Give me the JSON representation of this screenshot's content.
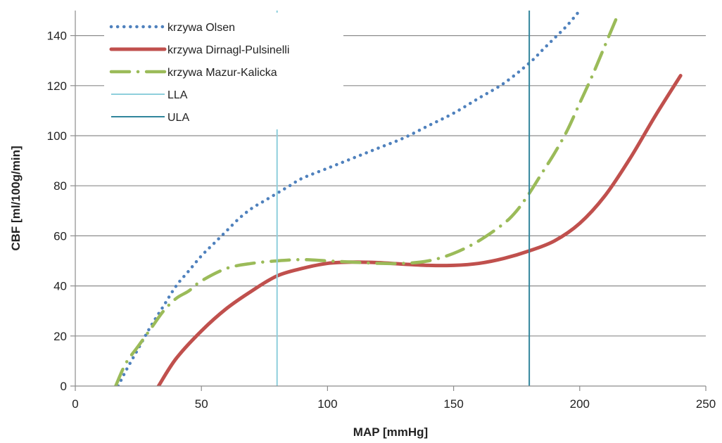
{
  "chart_data": {
    "type": "line",
    "xlabel": "MAP [mmHg]",
    "ylabel": "CBF [ml/100g/min]",
    "xlim": [
      0,
      250
    ],
    "ylim": [
      0,
      150
    ],
    "x_ticks": [
      0,
      50,
      100,
      150,
      200,
      250
    ],
    "y_ticks": [
      0,
      20,
      40,
      60,
      80,
      100,
      120,
      140
    ],
    "grid": "horizontal",
    "legend_position": "top-left",
    "series": [
      {
        "name": "krzywa Olsen",
        "color": "#4F81BD",
        "style": "dotted",
        "x": [
          17,
          20,
          25,
          30,
          35,
          40,
          45,
          50,
          55,
          60,
          65,
          70,
          75,
          80,
          85,
          90,
          100,
          110,
          120,
          130,
          140,
          150,
          160,
          170,
          180,
          185,
          190,
          195,
          200
        ],
        "y": [
          0,
          6,
          15,
          24,
          32,
          40,
          46,
          52,
          57,
          62,
          67,
          71,
          74,
          77,
          80,
          83,
          87,
          91,
          95,
          99,
          104,
          109,
          115,
          121,
          129,
          134,
          139,
          144,
          150
        ]
      },
      {
        "name": "krzywa Dirnagl-Pulsinelli",
        "color": "#C0504D",
        "style": "solid",
        "x": [
          33,
          40,
          50,
          60,
          70,
          80,
          90,
          100,
          110,
          120,
          130,
          140,
          150,
          160,
          170,
          180,
          190,
          200,
          210,
          220,
          230,
          240
        ],
        "y": [
          0,
          11,
          22,
          31,
          38,
          44,
          47,
          49,
          49.5,
          49.3,
          48.7,
          48.2,
          48.2,
          49,
          51,
          54,
          58,
          65,
          76,
          91,
          108,
          124
        ]
      },
      {
        "name": "krzywa Mazur-Kalicka",
        "color": "#9BBB59",
        "style": "dash-dot",
        "x": [
          16,
          20,
          25,
          30,
          35,
          40,
          45,
          50,
          60,
          70,
          80,
          90,
          100,
          110,
          120,
          130,
          140,
          150,
          160,
          170,
          175,
          180,
          185,
          190,
          195,
          200,
          205,
          210,
          215
        ],
        "y": [
          0,
          9,
          16,
          23,
          30,
          35,
          38,
          42,
          47,
          49,
          50,
          50.5,
          50,
          49.5,
          49,
          49,
          50,
          53,
          58,
          65,
          70,
          77,
          85,
          93,
          102,
          113,
          124,
          136,
          148
        ]
      },
      {
        "name": "LLA",
        "color": "#8ECFDC",
        "style": "vertical-line",
        "x": [
          80,
          80
        ],
        "y": [
          0,
          150
        ]
      },
      {
        "name": "ULA",
        "color": "#31859C",
        "style": "vertical-line",
        "x": [
          180,
          180
        ],
        "y": [
          0,
          150
        ]
      }
    ]
  }
}
